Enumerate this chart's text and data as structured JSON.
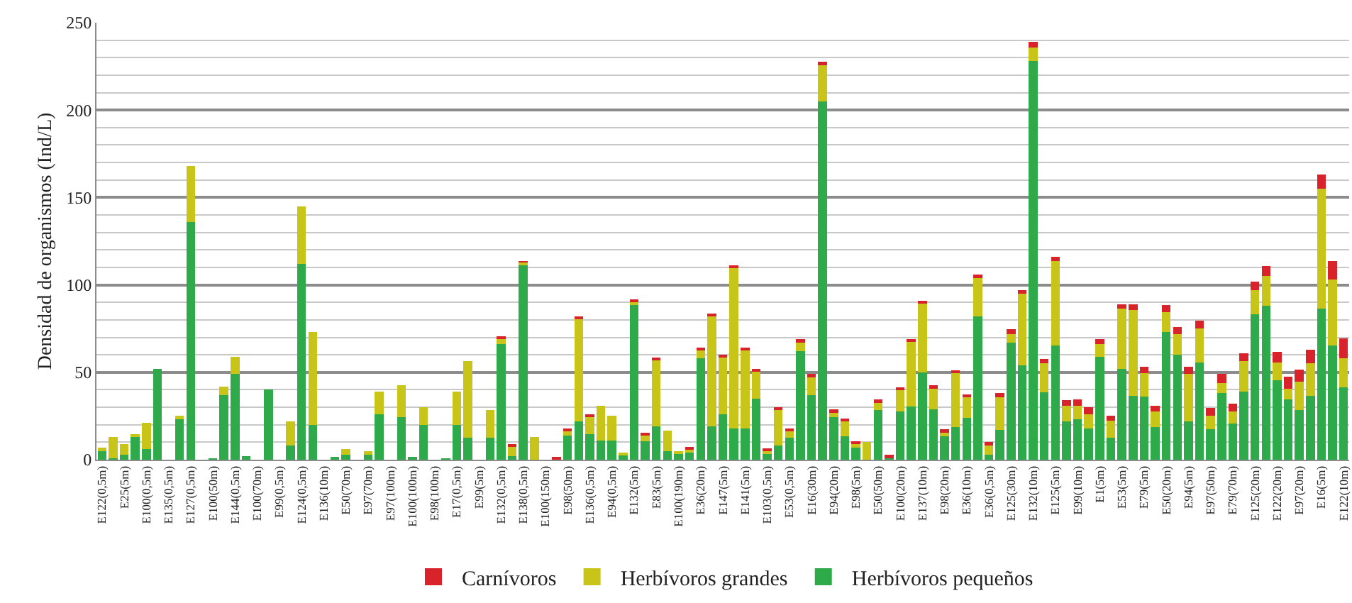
{
  "chart_data": {
    "type": "bar",
    "stacked": true,
    "ylabel": "Densidad de organismos (Ind/L)",
    "ylim": [
      0,
      250
    ],
    "yticks": [
      0,
      50,
      100,
      150,
      200,
      250
    ],
    "grid": true,
    "legend": "bottom",
    "categories": [
      "E122(0,5m)",
      null,
      "E25(5m)",
      null,
      "E100(0,5m)",
      null,
      "E135(0,5m)",
      null,
      "E127(0,5m)",
      null,
      "E100(50m)",
      null,
      "E144(0,5m)",
      null,
      "E100(70m)",
      null,
      "E99(0,5m)",
      null,
      "E124(0,5m)",
      null,
      "E136(10m)",
      null,
      "E50(70m)",
      null,
      "E97(70m)",
      null,
      "E97(100m)",
      null,
      "E100(100m)",
      null,
      "E98(100m)",
      null,
      "E17(0,5m)",
      null,
      "E99(5m)",
      null,
      "E132(0,5m)",
      null,
      "E138(0,5m)",
      null,
      "E100(150m)",
      null,
      "E98(50m)",
      null,
      "E136(0,5m)",
      null,
      "E94(0,5m)",
      null,
      "E132(5m)",
      null,
      "E83(5m)",
      null,
      "E100(190m)",
      null,
      "E36(20m)",
      null,
      "E147(5m)",
      null,
      "E141(5m)",
      null,
      "E103(0,5m)",
      null,
      "E53(0,5m)",
      null,
      "E16(30m)",
      null,
      "E94(20m)",
      null,
      "E98(5m)",
      null,
      "E50(50m)",
      null,
      "E100(20m)",
      null,
      "E137(10m)",
      null,
      "E98(20m)",
      null,
      "E36(10m)",
      null,
      "E36(0,5m)",
      null,
      "E125(30m)",
      null,
      "E132(10m)",
      null,
      "E125(5m)",
      null,
      "E99(10m)",
      null,
      "E1(5m)",
      null,
      "E53(5m)",
      null,
      "E79(5m)",
      null,
      "E50(20m)",
      null,
      "E94(5m)",
      null,
      "E97(50m)",
      null,
      "E79(70m)",
      null,
      "E125(20m)",
      null,
      "E122(20m)",
      null,
      "E97(20m)",
      null,
      "E16(5m)",
      null,
      "E122(10m)"
    ],
    "series": [
      {
        "name": "Herbívoros pequeños",
        "color": "#2eaa4a",
        "values": [
          5,
          1,
          3,
          13,
          6,
          52,
          0,
          23,
          136,
          0,
          0.5,
          37,
          49,
          2,
          0,
          40,
          0,
          8,
          112,
          20,
          0,
          1,
          3,
          0,
          3,
          26,
          0,
          24.5,
          1,
          20,
          0,
          0.5,
          20,
          12.5,
          0,
          12.5,
          66,
          2,
          112,
          0,
          0,
          0,
          14,
          22,
          14.5,
          11,
          11,
          3,
          89,
          10.5,
          19,
          5,
          3.5,
          4,
          58,
          19,
          26,
          18,
          18,
          35,
          3.5,
          8,
          12.5,
          62,
          37,
          205,
          24.5,
          13.5,
          7,
          0,
          28.5,
          1,
          27.5,
          30.5,
          50,
          29,
          13.5,
          18.5,
          24,
          82,
          3,
          17,
          67,
          54,
          228,
          38.5,
          65.5,
          22,
          23,
          18,
          59,
          12.5,
          52,
          36.5,
          36,
          18.5,
          73,
          60,
          22,
          55.5,
          17.5,
          38,
          20.5,
          39,
          83,
          88,
          45.5,
          34.5,
          28.5,
          36.5,
          86.5,
          65.5,
          41.5
        ]
      },
      {
        "name": "Herbívoros grandes",
        "color": "#c8c418",
        "values": [
          2,
          12,
          6,
          1,
          15,
          0,
          0,
          2,
          32,
          0,
          0,
          5,
          10,
          0,
          0,
          0,
          0,
          14,
          33,
          53,
          0,
          0,
          3,
          0,
          2,
          13,
          0,
          18,
          0,
          10,
          0,
          0,
          19,
          44,
          0,
          16,
          3,
          6,
          1,
          13,
          0,
          0,
          2.5,
          59,
          10,
          20,
          14,
          1,
          1.5,
          4,
          38,
          11.5,
          1,
          2,
          5,
          63.5,
          33,
          92,
          45,
          16,
          1.5,
          21,
          4,
          5,
          10,
          21,
          3,
          8.5,
          2,
          10,
          4.5,
          0.5,
          12.5,
          37,
          40,
          12,
          2.5,
          31.5,
          12,
          22.5,
          5,
          19.5,
          5,
          41,
          8,
          16.5,
          48,
          9,
          8,
          8,
          7,
          10,
          34.5,
          49,
          13.5,
          9,
          11.5,
          12,
          27,
          19.5,
          7.5,
          6,
          7,
          17.5,
          14,
          17,
          10,
          6,
          16,
          18.5,
          68.5,
          37.5,
          16.5
        ]
      },
      {
        "name": "Carnívoros",
        "color": "#d9232a",
        "values": [
          0,
          0,
          0,
          0,
          0,
          0,
          0,
          0,
          0,
          0,
          0,
          0,
          0,
          0,
          0,
          0,
          0,
          0,
          0,
          0,
          0,
          0,
          0,
          0,
          0,
          0,
          0,
          0,
          0,
          0,
          0,
          0,
          0,
          0,
          0,
          0,
          1,
          1,
          0.5,
          0,
          0,
          1,
          1,
          1,
          0.7,
          0,
          0,
          0,
          1,
          1,
          1,
          0,
          0,
          1,
          1,
          1,
          1,
          1,
          1,
          1,
          1,
          1,
          1,
          2,
          2,
          1.5,
          1.5,
          1,
          1,
          0,
          1.5,
          1.5,
          1,
          1.5,
          1,
          1.5,
          1.5,
          1,
          1,
          1.5,
          2,
          1.5,
          2.5,
          2,
          3,
          2.5,
          2.5,
          3,
          3.5,
          4,
          3,
          2.5,
          2.5,
          3.5,
          3.5,
          3.5,
          4,
          4,
          4,
          4.5,
          4.5,
          5,
          4.5,
          4.5,
          5,
          6,
          6,
          7,
          7,
          8,
          8,
          10.5,
          11.5
        ]
      }
    ]
  }
}
